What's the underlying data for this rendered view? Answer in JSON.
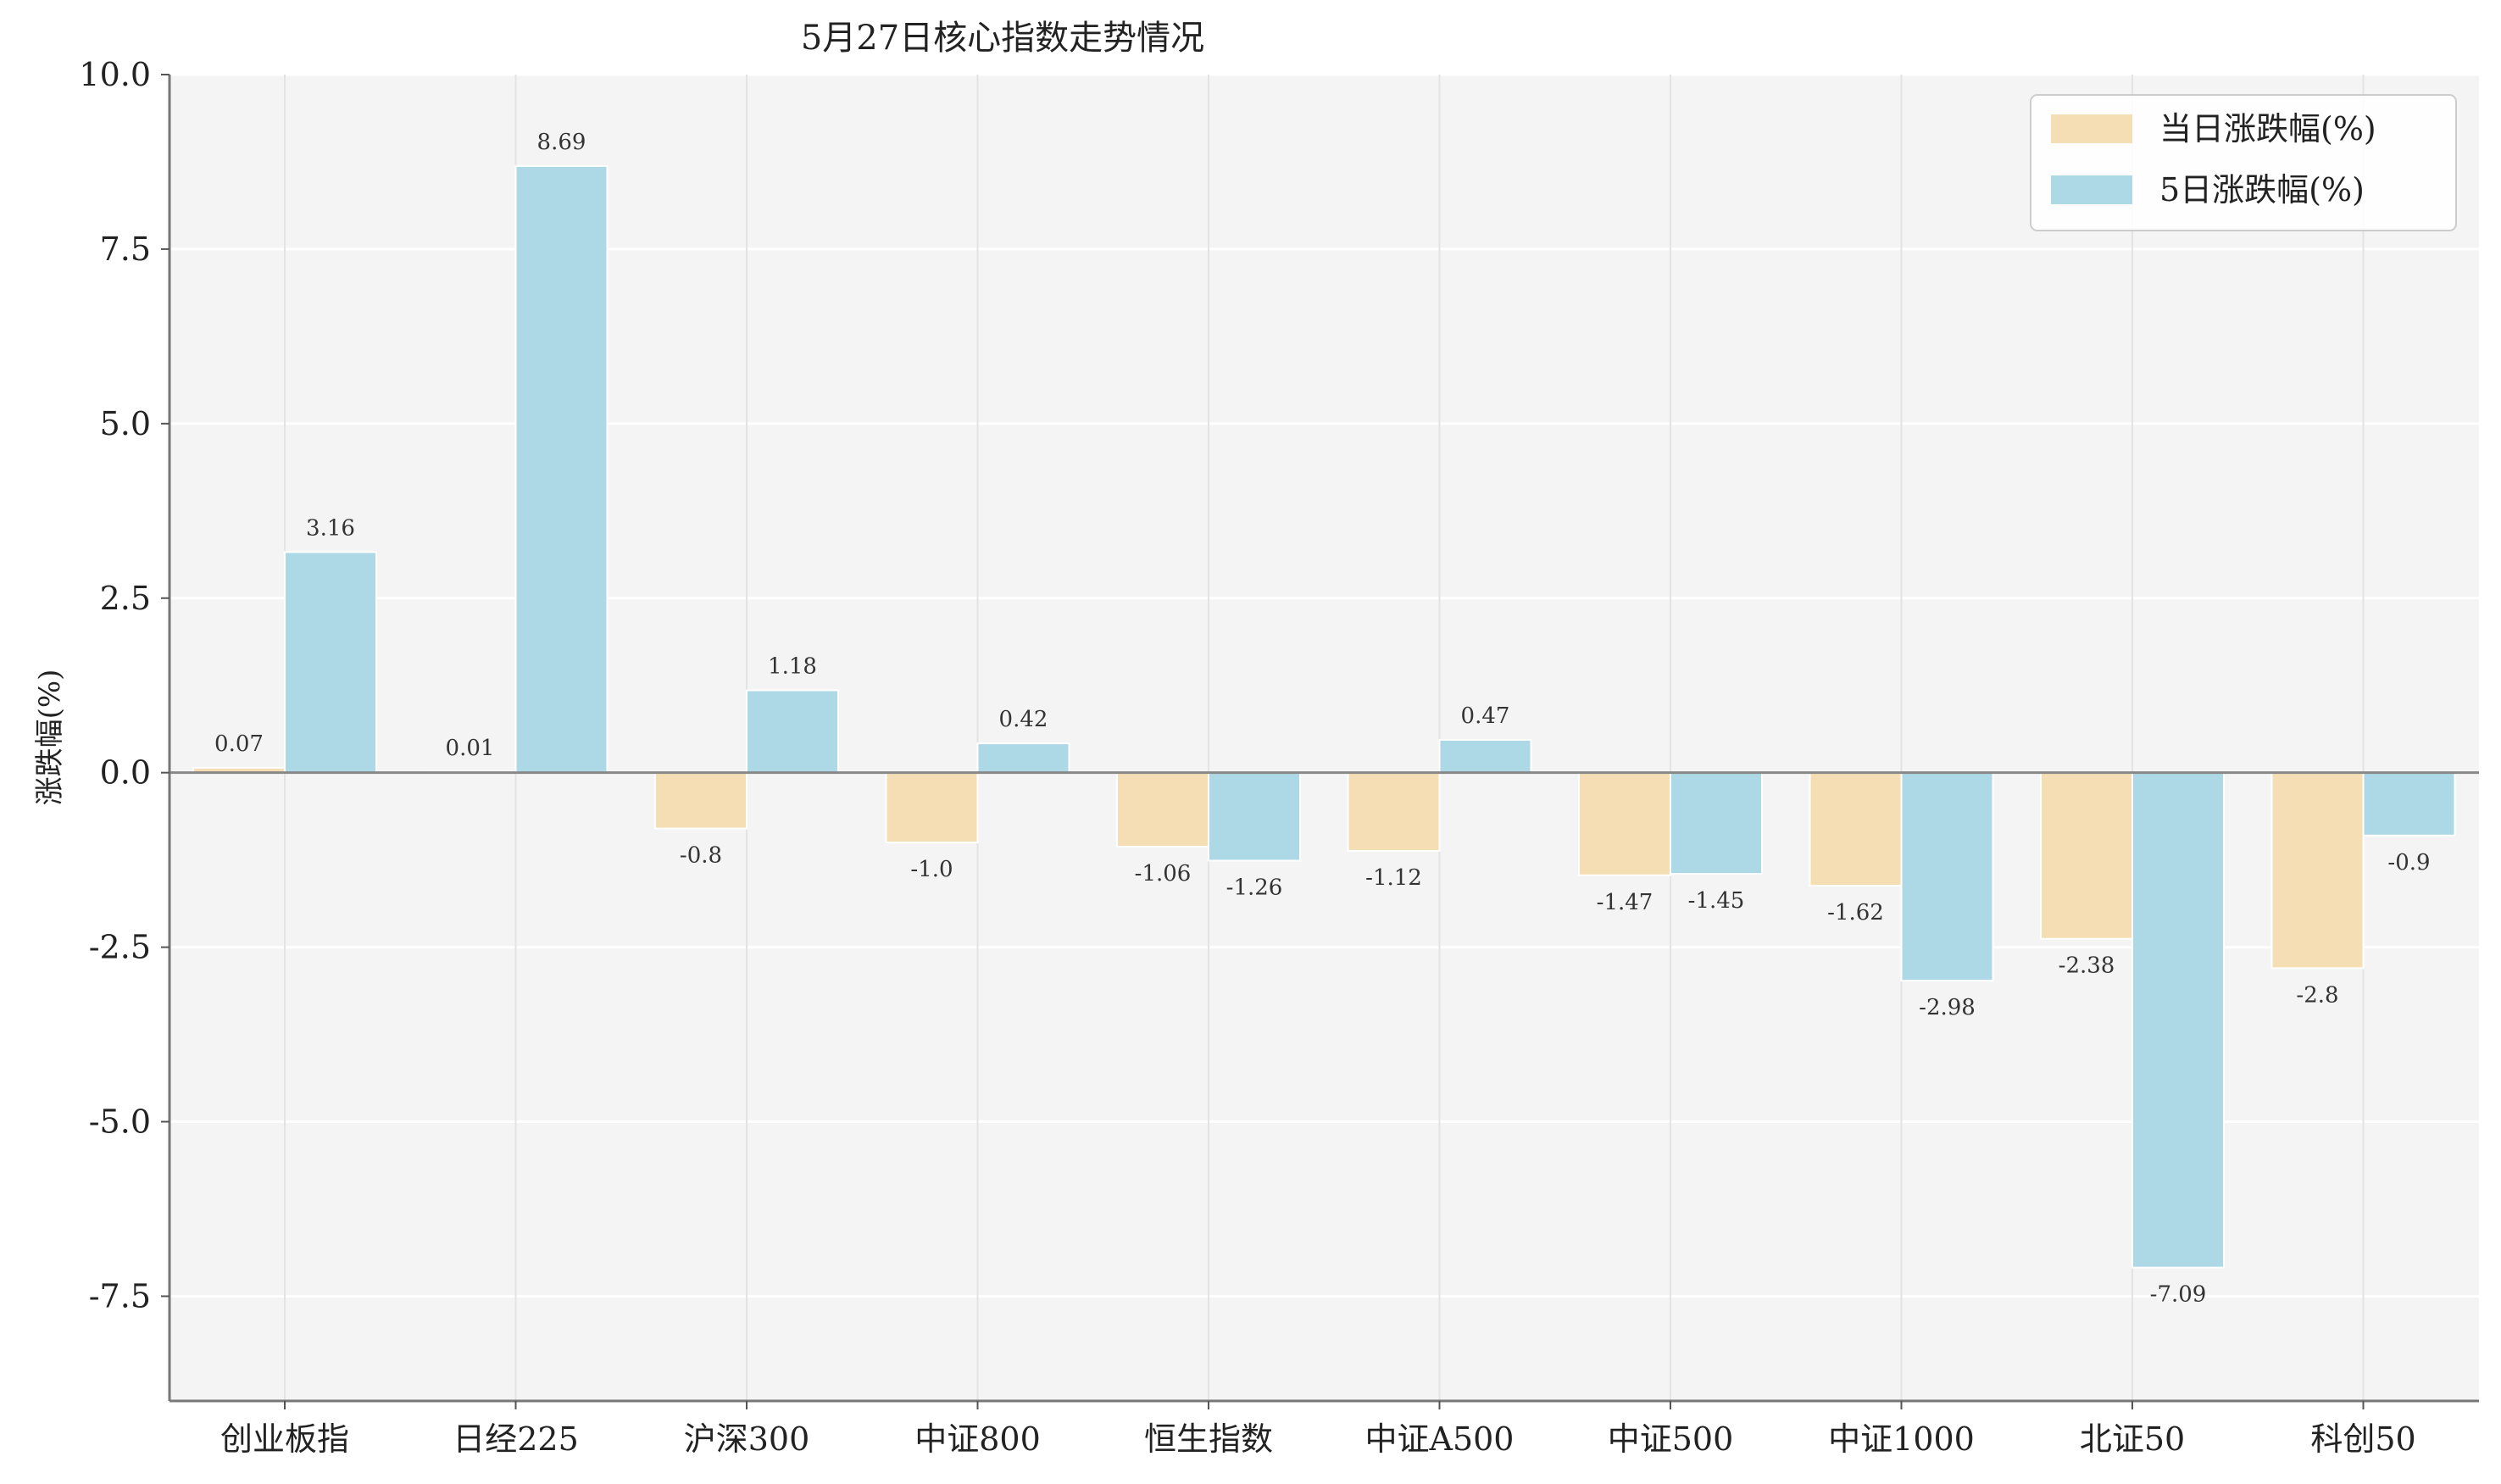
{
  "chart_data": {
    "type": "bar",
    "title": "5月27日核心指数走势情况",
    "ylabel": "涨跌幅(%)",
    "xlabel": "",
    "ylim": [
      -9.0,
      10.0
    ],
    "yticks": [
      10.0,
      7.5,
      5.0,
      2.5,
      0.0,
      -2.5,
      -5.0,
      -7.5
    ],
    "ytick_labels": [
      "10.0",
      "7.5",
      "5.0",
      "2.5",
      "0.0",
      "-2.5",
      "-5.0",
      "-7.5"
    ],
    "categories": [
      "创业板指",
      "日经225",
      "沪深300",
      "中证800",
      "恒生指数",
      "中证A500",
      "中证500",
      "中证1000",
      "北证50",
      "科创50"
    ],
    "series": [
      {
        "name": "当日涨跌幅(%)",
        "color": "#f5deb3",
        "values": [
          0.07,
          0.01,
          -0.8,
          -1.0,
          -1.06,
          -1.12,
          -1.47,
          -1.62,
          -2.38,
          -2.8
        ],
        "labels": [
          "0.07",
          "0.01",
          "-0.8",
          "-1.0",
          "-1.06",
          "-1.12",
          "-1.47",
          "-1.62",
          "-2.38",
          "-2.8"
        ]
      },
      {
        "name": "5日涨跌幅(%)",
        "color": "#add8e6",
        "values": [
          3.16,
          8.69,
          1.18,
          0.42,
          -1.26,
          0.47,
          -1.45,
          -2.98,
          -7.09,
          -0.9
        ],
        "labels": [
          "3.16",
          "8.69",
          "1.18",
          "0.42",
          "-1.26",
          "0.47",
          "-1.45",
          "-2.98",
          "-7.09",
          "-0.9"
        ]
      }
    ],
    "grid": true,
    "legend": "top-right",
    "background": "#f4f4f4"
  }
}
